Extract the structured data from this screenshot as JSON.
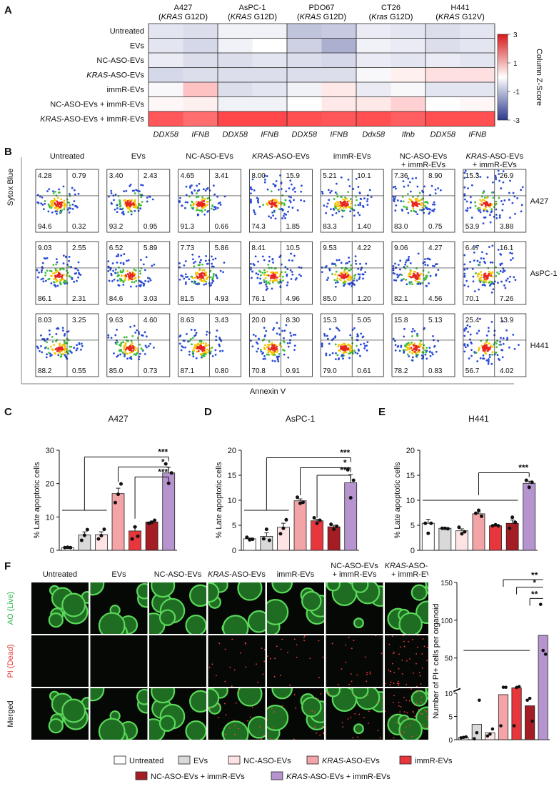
{
  "panelA": {
    "letter": "A",
    "lines": [
      {
        "name": "A427",
        "mutation_pre": "(",
        "gene": "KRAS",
        "mutation_post": " G12D)"
      },
      {
        "name": "AsPC-1",
        "mutation_pre": "(",
        "gene": "KRAS",
        "mutation_post": " G12D)"
      },
      {
        "name": "PDO67",
        "mutation_pre": "(",
        "gene": "KRAS",
        "mutation_post": " G12D)"
      },
      {
        "name": "CT26",
        "mutation_pre": "(",
        "gene": "Kras",
        "mutation_post": " G12D)"
      },
      {
        "name": "H441",
        "mutation_pre": "(",
        "gene": "KRAS",
        "mutation_post": " G12V)"
      }
    ],
    "rows": [
      "Untreated",
      "EVs",
      "NC-ASO-EVs",
      "KRAS-ASO-EVs",
      "immR-EVs",
      "NC-ASO-EVs + immR-EVs",
      "KRAS-ASO-EVs + immR-EVs"
    ],
    "cols": [
      "DDX58",
      "IFNB",
      "DDX58",
      "IFNB",
      "DDX58",
      "IFNB",
      "Ddx58",
      "Ifnb",
      "DDX58",
      "IFNB"
    ],
    "colorbar_label": "Column Z-Score",
    "colorbar_ticks": [
      "3",
      "1",
      "-1",
      "-3"
    ]
  },
  "panelB": {
    "letter": "B",
    "conditions": [
      "Untreated",
      "EVs",
      "NC-ASO-EVs",
      "KRAS-ASO-EVs",
      "immR-EVs",
      "NC-ASO-EVs\n+ immR-EVs",
      "KRAS-ASO-EVs\n+ immR-EVs"
    ],
    "cond_top": [
      "Untreated",
      "EVs",
      "NC-ASO-EVs",
      "KRAS-ASO-EVs",
      "immR-EVs",
      "NC-ASO-EVs",
      "KRAS-ASO-EVs"
    ],
    "cond_bottom": [
      "",
      "",
      "",
      "",
      "",
      "+ immR-EVs",
      "+ immR-EVs"
    ],
    "rows": [
      "A427",
      "AsPC-1",
      "H441"
    ],
    "ylabel": "Sytox Blue",
    "xlabel": "Annexin V",
    "quadrants": [
      [
        [
          "4.28",
          "0.79",
          "94.6",
          "0.32"
        ],
        [
          "3.40",
          "2.43",
          "93.2",
          "0.95"
        ],
        [
          "4.65",
          "3.41",
          "91.3",
          "0.66"
        ],
        [
          "8.00",
          "15.9",
          "74.3",
          "1.85"
        ],
        [
          "5.21",
          "10.1",
          "83.3",
          "1.40"
        ],
        [
          "7.36",
          "8.90",
          "83.0",
          "0.75"
        ],
        [
          "15.3",
          "26.9",
          "53.9",
          "3.88"
        ]
      ],
      [
        [
          "9.03",
          "2.55",
          "86.1",
          "2.31"
        ],
        [
          "6.52",
          "5.89",
          "84.6",
          "3.03"
        ],
        [
          "7.73",
          "5.86",
          "81.5",
          "4.93"
        ],
        [
          "8.41",
          "10.5",
          "76.1",
          "4.96"
        ],
        [
          "9.53",
          "4.22",
          "85.0",
          "1.20"
        ],
        [
          "9.06",
          "4.27",
          "82.1",
          "4.56"
        ],
        [
          "6.47",
          "16.1",
          "70.1",
          "7.26"
        ]
      ],
      [
        [
          "8.03",
          "3.25",
          "88.2",
          "0.55"
        ],
        [
          "9.63",
          "4.60",
          "85.0",
          "0.73"
        ],
        [
          "8.63",
          "3.43",
          "87.1",
          "0.80"
        ],
        [
          "20.0",
          "8.30",
          "70.8",
          "0.91"
        ],
        [
          "15.3",
          "5.05",
          "79.0",
          "0.61"
        ],
        [
          "15.8",
          "5.13",
          "78.2",
          "0.83"
        ],
        [
          "25.4",
          "13.9",
          "56.7",
          "4.02"
        ]
      ]
    ]
  },
  "chart_data": [
    {
      "type": "bar",
      "panel": "C",
      "title": "A427",
      "ylabel": "% Late apoptotic cells",
      "ylim": [
        0,
        30
      ],
      "yticks": [
        "0",
        "10",
        "20",
        "30"
      ],
      "categories": [
        "Untreated",
        "EVs",
        "NC-ASO-EVs",
        "KRAS-ASO-EVs",
        "immR-EVs",
        "NC-ASO-EVs + immR-EVs",
        "KRAS-ASO-EVs + immR-EVs"
      ],
      "values": [
        0.8,
        4.6,
        4.7,
        17.0,
        5.8,
        8.5,
        23.2
      ],
      "points": [
        [
          0.8,
          0.9,
          0.8
        ],
        [
          3.0,
          4.5,
          6.2
        ],
        [
          3.4,
          4.4,
          6.3
        ],
        [
          14.3,
          16.8,
          19.9
        ],
        [
          3.4,
          7.0,
          4.2
        ],
        [
          8.1,
          8.4,
          9.0
        ],
        [
          25.9,
          20.1,
          23.2
        ]
      ],
      "significance": [
        "***",
        "*",
        "***"
      ]
    },
    {
      "type": "bar",
      "panel": "D",
      "title": "AsPC-1",
      "ylabel": "% Late apoptotic cells",
      "ylim": [
        0,
        20
      ],
      "yticks": [
        "0",
        "5",
        "10",
        "15",
        "20"
      ],
      "categories": [
        "Untreated",
        "EVs",
        "NC-ASO-EVs",
        "KRAS-ASO-EVs",
        "immR-EVs",
        "NC-ASO-EVs + immR-EVs",
        "KRAS-ASO-EVs + immR-EVs"
      ],
      "values": [
        2.3,
        2.8,
        4.6,
        9.9,
        5.9,
        4.7,
        13.5
      ],
      "points": [
        [
          2.6,
          2.1,
          2.2
        ],
        [
          2.3,
          4.2,
          2.0
        ],
        [
          3.3,
          4.4,
          6.1
        ],
        [
          10.6,
          9.4,
          9.6
        ],
        [
          6.5,
          5.4,
          6.0
        ],
        [
          5.2,
          4.2,
          4.8
        ],
        [
          16.1,
          10.5,
          14.0
        ]
      ],
      "significance": [
        "***",
        "*",
        "***"
      ]
    },
    {
      "type": "bar",
      "panel": "E",
      "title": "H441",
      "ylabel": "% Late apoptotic cells",
      "ylim": [
        0,
        20
      ],
      "yticks": [
        "0",
        "5",
        "10",
        "15",
        "20"
      ],
      "categories": [
        "Untreated",
        "EVs",
        "NC-ASO-EVs",
        "KRAS-ASO-EVs",
        "immR-EVs",
        "NC-ASO-EVs + immR-EVs",
        "KRAS-ASO-EVs + immR-EVs"
      ],
      "values": [
        5.4,
        4.4,
        3.9,
        7.3,
        4.9,
        5.4,
        13.4
      ],
      "points": [
        [
          5.4,
          3.4,
          5.4
        ],
        [
          4.4,
          4.4,
          4.3
        ],
        [
          4.6,
          3.3,
          3.7
        ],
        [
          7.4,
          8.0,
          6.8
        ],
        [
          4.9,
          5.1,
          4.9
        ],
        [
          4.4,
          6.6,
          5.6
        ],
        [
          14.0,
          12.6,
          13.6
        ]
      ],
      "significance": [
        "***"
      ]
    },
    {
      "type": "bar",
      "panel": "F",
      "ylabel": "Number of PI+ cells per organoid",
      "ylim": [
        0,
        150
      ],
      "yticks": [
        "0",
        "5",
        "10",
        "50",
        "100",
        "150"
      ],
      "categories": [
        "Untreated",
        "EVs",
        "NC-ASO-EVs",
        "KRAS-ASO-EVs",
        "immR-EVs",
        "NC-ASO-EVs + immR-EVs",
        "KRAS-ASO-EVs + immR-EVs"
      ],
      "values": [
        0.5,
        3.3,
        1.5,
        9.7,
        10.6,
        7.3,
        80.0
      ],
      "points": [
        [
          0.4,
          0.5,
          0.6
        ],
        [
          0.2,
          1.5,
          8.5
        ],
        [
          0.8,
          1.2,
          2.3
        ],
        [
          3.0,
          11.3,
          11.2
        ],
        [
          3.0,
          11.0,
          12.1
        ],
        [
          8.5,
          8.9,
          4.0
        ],
        [
          121,
          60,
          55
        ]
      ],
      "significance": [
        "**",
        "*",
        "**"
      ]
    }
  ],
  "panelF": {
    "letter": "F",
    "conditions": [
      "Untreated",
      "EVs",
      "NC-ASO-EVs",
      "KRAS-ASO-EVs",
      "immR-EVs",
      "NC-ASO-EVs\n+ immR-EVs",
      "KRAS-ASO-EVs\n+ immR-EVs"
    ],
    "cond_top": [
      "Untreated",
      "EVs",
      "NC-ASO-EVs",
      "KRAS-ASO-EVs",
      "immR-EVs",
      "NC-ASO-EVs",
      "KRAS-ASO-EVs"
    ],
    "cond_bottom": [
      "",
      "",
      "",
      "",
      "",
      "+ immR-EVs",
      "+ immR-EVs"
    ],
    "row_labels": [
      "AO (Live)",
      "PI (Dead)",
      "Merged"
    ],
    "row_colors": [
      "#2db34a",
      "#e23b3b",
      "#111111"
    ]
  },
  "legend": [
    {
      "label": "Untreated",
      "color": "#ffffff"
    },
    {
      "label": "EVs",
      "color": "#d9d9d9"
    },
    {
      "label": "NC-ASO-EVs",
      "color": "#fde3e3"
    },
    {
      "label": "KRAS-ASO-EVs",
      "color": "#f3a4a6"
    },
    {
      "label": "immR-EVs",
      "color": "#e8363d"
    },
    {
      "label": "NC-ASO-EVs + immR-EVs",
      "color": "#a51d24"
    },
    {
      "label": "KRAS-ASO-EVs + immR-EVs",
      "color": "#b594cf"
    }
  ],
  "colors": {
    "heat_high": "#d7191c",
    "heat_low": "#2c3a8c",
    "bar_edge": "#222222"
  }
}
